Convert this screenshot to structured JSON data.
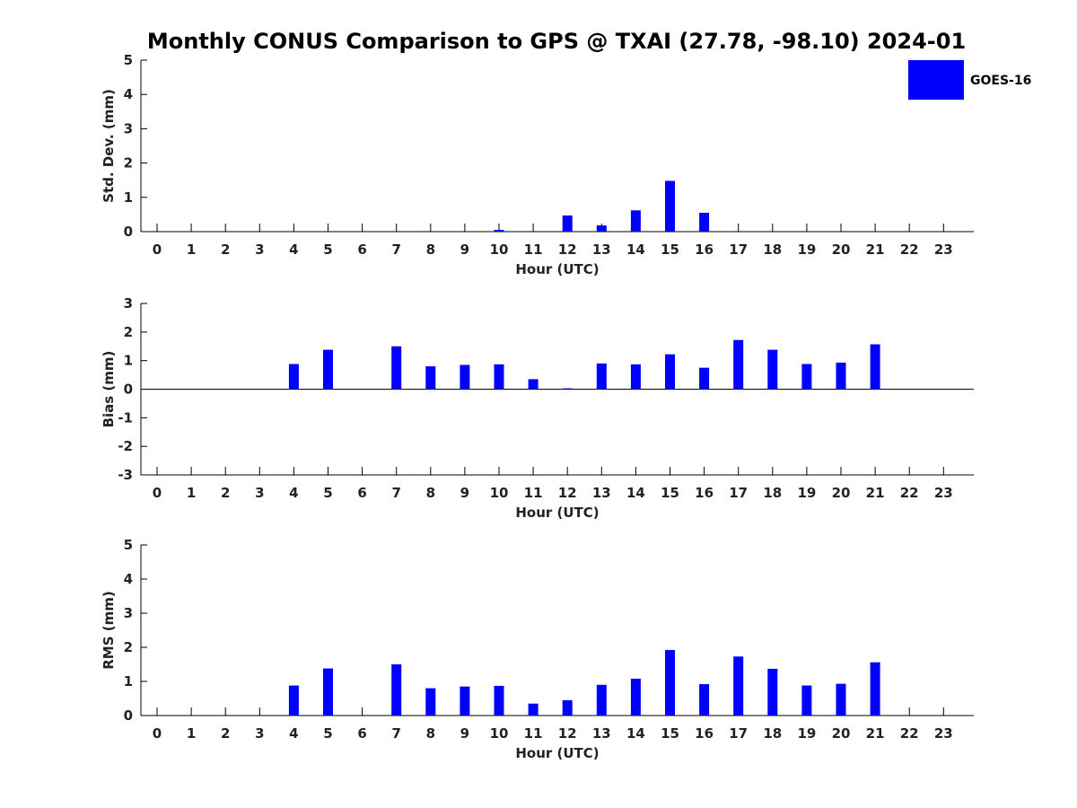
{
  "title": "Monthly CONUS Comparison to GPS @ TXAI (27.78, -98.10) 2024-01",
  "legend": {
    "label": "GOES-16",
    "color": "#0000ff"
  },
  "chart_data": [
    {
      "type": "bar",
      "name": "std-dev",
      "xlabel": "Hour (UTC)",
      "ylabel": "Std. Dev. (mm)",
      "ylim": [
        0,
        5
      ],
      "yticks": [
        0,
        1,
        2,
        3,
        4,
        5
      ],
      "categories": [
        "0",
        "1",
        "2",
        "3",
        "4",
        "5",
        "6",
        "7",
        "8",
        "9",
        "10",
        "11",
        "12",
        "13",
        "14",
        "15",
        "16",
        "17",
        "18",
        "19",
        "20",
        "21",
        "22",
        "23"
      ],
      "series": [
        {
          "name": "GOES-16",
          "values": [
            0,
            0,
            0,
            0,
            0,
            0,
            0,
            0,
            0,
            0,
            0.05,
            0,
            0.47,
            0.18,
            0.62,
            1.48,
            0.55,
            0,
            0,
            0,
            0,
            0,
            0,
            0
          ]
        }
      ]
    },
    {
      "type": "bar",
      "name": "bias",
      "xlabel": "Hour (UTC)",
      "ylabel": "Bias (mm)",
      "ylim": [
        -3,
        3
      ],
      "yticks": [
        -3,
        -2,
        -1,
        0,
        1,
        2,
        3
      ],
      "categories": [
        "0",
        "1",
        "2",
        "3",
        "4",
        "5",
        "6",
        "7",
        "8",
        "9",
        "10",
        "11",
        "12",
        "13",
        "14",
        "15",
        "16",
        "17",
        "18",
        "19",
        "20",
        "21",
        "22",
        "23"
      ],
      "series": [
        {
          "name": "GOES-16",
          "values": [
            0,
            0,
            0,
            0,
            0.88,
            1.38,
            0,
            1.5,
            0.8,
            0.85,
            0.87,
            0.35,
            0.03,
            0.9,
            0.87,
            1.22,
            0.75,
            1.72,
            1.38,
            0.88,
            0.93,
            1.57,
            0,
            0
          ]
        }
      ]
    },
    {
      "type": "bar",
      "name": "rms",
      "xlabel": "Hour (UTC)",
      "ylabel": "RMS (mm)",
      "ylim": [
        0,
        5
      ],
      "yticks": [
        0,
        1,
        2,
        3,
        4,
        5
      ],
      "categories": [
        "0",
        "1",
        "2",
        "3",
        "4",
        "5",
        "6",
        "7",
        "8",
        "9",
        "10",
        "11",
        "12",
        "13",
        "14",
        "15",
        "16",
        "17",
        "18",
        "19",
        "20",
        "21",
        "22",
        "23"
      ],
      "series": [
        {
          "name": "GOES-16",
          "values": [
            0,
            0,
            0,
            0,
            0.88,
            1.38,
            0,
            1.5,
            0.8,
            0.85,
            0.87,
            0.35,
            0.45,
            0.9,
            1.08,
            1.92,
            0.92,
            1.73,
            1.37,
            0.88,
            0.93,
            1.56,
            0,
            0
          ]
        }
      ]
    }
  ]
}
